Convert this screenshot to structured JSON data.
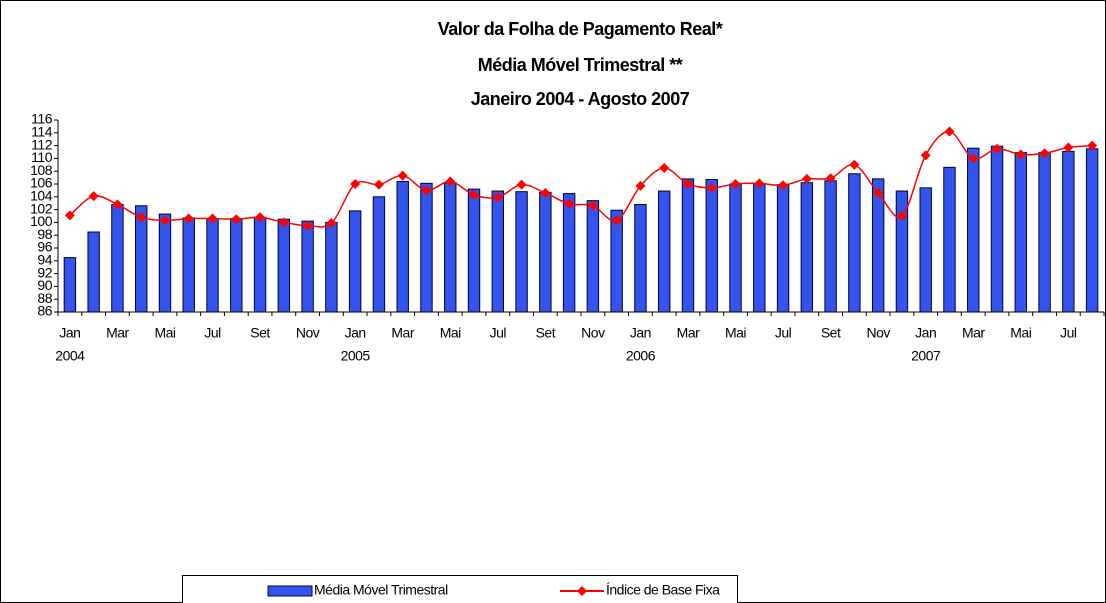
{
  "chart_data": {
    "type": "bar_line",
    "title": "Valor da Folha de Pagamento Real*",
    "subtitle": [
      "Média Móvel Trimestral **",
      "Janeiro 2004 - Agosto 2007"
    ],
    "categories": [
      "Jan",
      null,
      "Mar",
      null,
      "Mai",
      null,
      "Jul",
      null,
      "Set",
      null,
      "Nov",
      null,
      "Jan",
      null,
      "Mar",
      null,
      "Mai",
      null,
      "Jul",
      null,
      "Set",
      null,
      "Nov",
      null,
      "Jan",
      null,
      "Mar",
      null,
      "Mai",
      null,
      "Jul",
      null,
      "Set",
      null,
      "Nov",
      null,
      "Jan",
      null,
      "Mar",
      null,
      "Mai",
      null,
      "Jul",
      null
    ],
    "year_labels": [
      "2004",
      null,
      null,
      null,
      null,
      null,
      null,
      null,
      null,
      null,
      null,
      null,
      "2005",
      null,
      null,
      null,
      null,
      null,
      null,
      null,
      null,
      null,
      null,
      null,
      "2006",
      null,
      null,
      null,
      null,
      null,
      null,
      null,
      null,
      null,
      null,
      null,
      "2007",
      null,
      null,
      null,
      null,
      null,
      null,
      null
    ],
    "series": [
      {
        "name": "Média Móvel Trimestral",
        "kind": "bar",
        "color": "#3355ee",
        "values": [
          94.5,
          98.5,
          102.8,
          102.6,
          101.3,
          100.7,
          100.6,
          100.6,
          100.8,
          100.5,
          100.2,
          100.0,
          101.8,
          104.0,
          106.4,
          106.1,
          106.2,
          105.2,
          104.9,
          104.8,
          104.7,
          104.5,
          103.4,
          101.9,
          102.8,
          104.9,
          106.8,
          106.7,
          106.0,
          106.1,
          105.9,
          106.2,
          106.5,
          107.6,
          106.8,
          104.9,
          105.4,
          108.6,
          111.6,
          111.9,
          110.9,
          110.9,
          111.1,
          111.5
        ]
      },
      {
        "name": "Índice de Base Fixa",
        "kind": "line",
        "color": "#ff0000",
        "values": [
          101.1,
          104.1,
          102.8,
          100.8,
          100.3,
          100.6,
          100.6,
          100.5,
          100.8,
          100.0,
          99.5,
          99.9,
          106.0,
          105.9,
          107.3,
          105.0,
          106.4,
          104.3,
          103.9,
          105.9,
          104.6,
          102.9,
          102.6,
          100.3,
          105.7,
          108.5,
          106.0,
          105.4,
          106.0,
          106.1,
          105.8,
          106.8,
          106.9,
          109.0,
          104.6,
          101.0,
          110.5,
          114.2,
          110.0,
          111.5,
          110.6,
          110.8,
          111.7,
          112.0
        ]
      }
    ],
    "ylim": [
      86,
      116
    ],
    "yticks": [
      86,
      88,
      90,
      92,
      94,
      96,
      98,
      100,
      102,
      104,
      106,
      108,
      110,
      112,
      114,
      116
    ],
    "grid": false,
    "legend": "bottom"
  }
}
